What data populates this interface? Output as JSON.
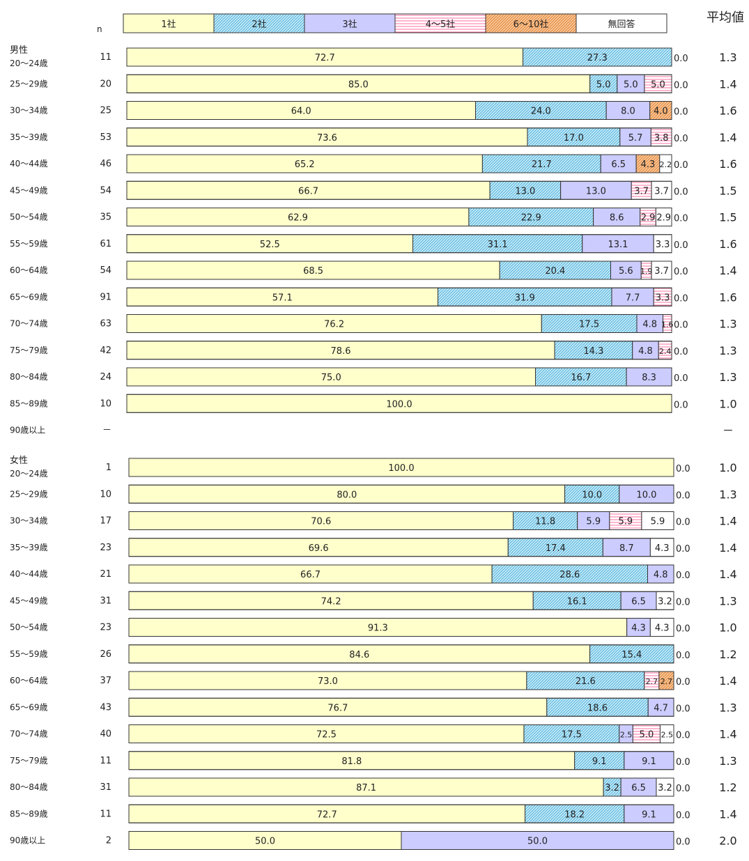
{
  "chart_data": {
    "type": "bar",
    "orientation": "horizontal",
    "stacked": "100%",
    "n_header": "n",
    "mean_header": "平均値",
    "legend_placement": "top",
    "series": [
      {
        "name": "1社",
        "color": "#ffffcc",
        "pattern": "solid"
      },
      {
        "name": "2社",
        "color": "#aee3f2",
        "pattern": "crosshatch-blue"
      },
      {
        "name": "3社",
        "color": "#ccccff",
        "pattern": "solid"
      },
      {
        "name": "4～5社",
        "color": "#ff99bb",
        "pattern": "horizontal-lines-pink"
      },
      {
        "name": "6～10社",
        "color": "#f4a460",
        "pattern": "crosshatch-orange"
      },
      {
        "name": "無回答",
        "color": "#ffffff",
        "pattern": "solid"
      }
    ],
    "groups": [
      {
        "name": "男性",
        "rows": [
          {
            "label": "20～24歳",
            "n": "11",
            "values": [
              72.7,
              27.3,
              0.0,
              0.0,
              0.0,
              0.0
            ],
            "mean": "1.3"
          },
          {
            "label": "25～29歳",
            "n": "20",
            "values": [
              85.0,
              5.0,
              5.0,
              5.0,
              0.0,
              0.0
            ],
            "mean": "1.4"
          },
          {
            "label": "30～34歳",
            "n": "25",
            "values": [
              64.0,
              24.0,
              8.0,
              0.0,
              4.0,
              0.0
            ],
            "mean": "1.6"
          },
          {
            "label": "35～39歳",
            "n": "53",
            "values": [
              73.6,
              17.0,
              5.7,
              3.8,
              0.0,
              0.0
            ],
            "mean": "1.4"
          },
          {
            "label": "40～44歳",
            "n": "46",
            "values": [
              65.2,
              21.7,
              6.5,
              0.0,
              4.3,
              2.2
            ],
            "mean": "1.6"
          },
          {
            "label": "45～49歳",
            "n": "54",
            "values": [
              66.7,
              13.0,
              13.0,
              3.7,
              0.0,
              3.7
            ],
            "mean": "1.5"
          },
          {
            "label": "50～54歳",
            "n": "35",
            "values": [
              62.9,
              22.9,
              8.6,
              2.9,
              0.0,
              2.9
            ],
            "mean": "1.5"
          },
          {
            "label": "55～59歳",
            "n": "61",
            "values": [
              52.5,
              31.1,
              13.1,
              0.0,
              0.0,
              3.3
            ],
            "mean": "1.6"
          },
          {
            "label": "60～64歳",
            "n": "54",
            "values": [
              68.5,
              20.4,
              5.6,
              1.9,
              0.0,
              3.7
            ],
            "mean": "1.4"
          },
          {
            "label": "65～69歳",
            "n": "91",
            "values": [
              57.1,
              31.9,
              7.7,
              3.3,
              0.0,
              0.0
            ],
            "mean": "1.6"
          },
          {
            "label": "70～74歳",
            "n": "63",
            "values": [
              76.2,
              17.5,
              4.8,
              1.6,
              0.0,
              0.0
            ],
            "mean": "1.3"
          },
          {
            "label": "75～79歳",
            "n": "42",
            "values": [
              78.6,
              14.3,
              4.8,
              2.4,
              0.0,
              0.0
            ],
            "mean": "1.3"
          },
          {
            "label": "80～84歳",
            "n": "24",
            "values": [
              75.0,
              16.7,
              8.3,
              0.0,
              0.0,
              0.0
            ],
            "mean": "1.3"
          },
          {
            "label": "85～89歳",
            "n": "10",
            "values": [
              100.0,
              0.0,
              0.0,
              0.0,
              0.0,
              0.0
            ],
            "mean": "1.0"
          },
          {
            "label": "90歳以上",
            "n": "－",
            "values": null,
            "mean": "－"
          }
        ]
      },
      {
        "name": "女性",
        "rows": [
          {
            "label": "20～24歳",
            "n": "1",
            "values": [
              100.0,
              0.0,
              0.0,
              0.0,
              0.0,
              0.0
            ],
            "mean": "1.0"
          },
          {
            "label": "25～29歳",
            "n": "10",
            "values": [
              80.0,
              10.0,
              10.0,
              0.0,
              0.0,
              0.0
            ],
            "mean": "1.3"
          },
          {
            "label": "30～34歳",
            "n": "17",
            "values": [
              70.6,
              11.8,
              5.9,
              5.9,
              0.0,
              5.9
            ],
            "mean": "1.4"
          },
          {
            "label": "35～39歳",
            "n": "23",
            "values": [
              69.6,
              17.4,
              8.7,
              0.0,
              0.0,
              4.3
            ],
            "mean": "1.4"
          },
          {
            "label": "40～44歳",
            "n": "21",
            "values": [
              66.7,
              28.6,
              4.8,
              0.0,
              0.0,
              0.0
            ],
            "mean": "1.4"
          },
          {
            "label": "45～49歳",
            "n": "31",
            "values": [
              74.2,
              16.1,
              6.5,
              0.0,
              0.0,
              3.2
            ],
            "mean": "1.3"
          },
          {
            "label": "50～54歳",
            "n": "23",
            "values": [
              91.3,
              0.0,
              4.3,
              0.0,
              0.0,
              4.3
            ],
            "mean": "1.0"
          },
          {
            "label": "55～59歳",
            "n": "26",
            "values": [
              84.6,
              15.4,
              0.0,
              0.0,
              0.0,
              0.0
            ],
            "mean": "1.2"
          },
          {
            "label": "60～64歳",
            "n": "37",
            "values": [
              73.0,
              21.6,
              0.0,
              2.7,
              2.7,
              0.0
            ],
            "mean": "1.4"
          },
          {
            "label": "65～69歳",
            "n": "43",
            "values": [
              76.7,
              18.6,
              4.7,
              0.0,
              0.0,
              0.0
            ],
            "mean": "1.3"
          },
          {
            "label": "70～74歳",
            "n": "40",
            "values": [
              72.5,
              17.5,
              2.5,
              5.0,
              0.0,
              2.5
            ],
            "mean": "1.4"
          },
          {
            "label": "75～79歳",
            "n": "11",
            "values": [
              81.8,
              9.1,
              9.1,
              0.0,
              0.0,
              0.0
            ],
            "mean": "1.3"
          },
          {
            "label": "80～84歳",
            "n": "31",
            "values": [
              87.1,
              3.2,
              6.5,
              0.0,
              0.0,
              3.2
            ],
            "mean": "1.2"
          },
          {
            "label": "85～89歳",
            "n": "11",
            "values": [
              72.7,
              18.2,
              9.1,
              0.0,
              0.0,
              0.0
            ],
            "mean": "1.4"
          },
          {
            "label": "90歳以上",
            "n": "2",
            "values": [
              50.0,
              0.0,
              50.0,
              0.0,
              0.0,
              0.0
            ],
            "mean": "2.0"
          }
        ]
      }
    ]
  }
}
